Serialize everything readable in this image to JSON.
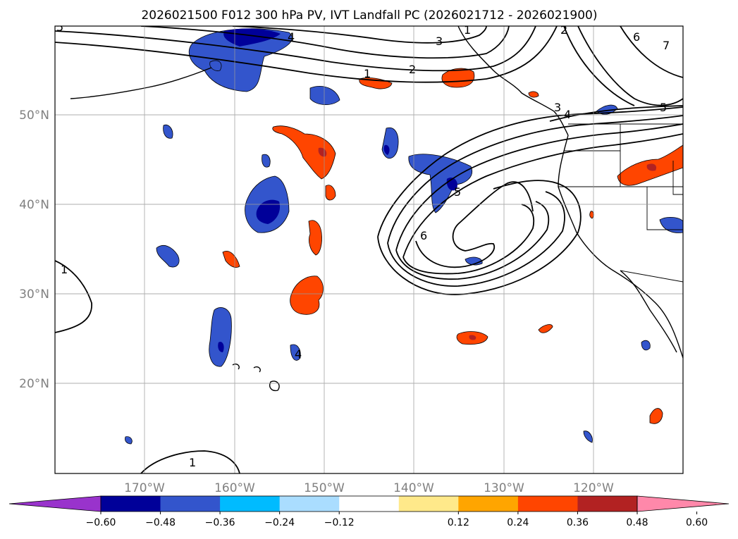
{
  "title": "2026021500 F012 300 hPa PV, IVT Landfall PC (2026021712 - 2026021900)",
  "map": {
    "projection": "PlateCarree",
    "lon_range": [
      -180,
      -110
    ],
    "lat_range": [
      10,
      60
    ],
    "gridlines": true,
    "lon_labels": [
      "170°W",
      "160°W",
      "150°W",
      "140°W",
      "130°W",
      "120°W"
    ],
    "lat_labels": [
      "50°N",
      "40°N",
      "30°N",
      "20°N"
    ],
    "contour_labels": [
      "1",
      "2",
      "3",
      "4",
      "5",
      "6",
      "1",
      "2",
      "3",
      "4",
      "5",
      "6",
      "7",
      "1",
      "5",
      "4",
      "1"
    ]
  },
  "colorbar": {
    "extend": "both",
    "ticks": [
      "−0.60",
      "−0.48",
      "−0.36",
      "−0.24",
      "−0.12",
      "0.12",
      "0.24",
      "0.36",
      "0.48",
      "0.60"
    ],
    "colors": [
      "#9933cc",
      "#000099",
      "#3355cc",
      "#00bbff",
      "#aaddff",
      "#ffffff",
      "#ffe98a",
      "#ffa500",
      "#ff4500",
      "#b22222",
      "#ff88aa"
    ]
  }
}
